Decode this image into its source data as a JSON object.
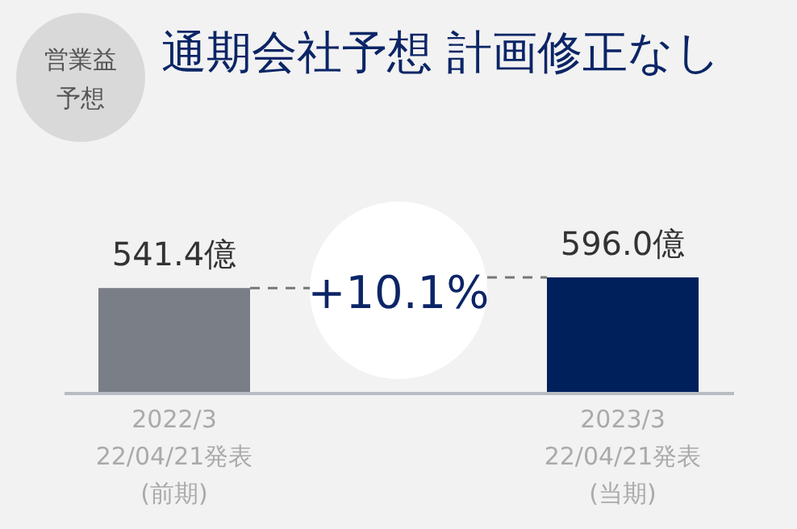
{
  "chart_data": {
    "type": "bar",
    "title": "通期会社予想 計画修正なし",
    "categories": [
      "2022/3\n22/04/21発表\n(前期)",
      "2023/3\n22/04/21発表\n(当期)"
    ],
    "values": [
      541.4,
      596.0
    ],
    "colors": [
      "#7a7e86",
      "#00205c"
    ],
    "value_labels": [
      "541.4億",
      "596.0億"
    ],
    "annotations": [
      "営業益予想",
      "+10.1%"
    ]
  }
}
